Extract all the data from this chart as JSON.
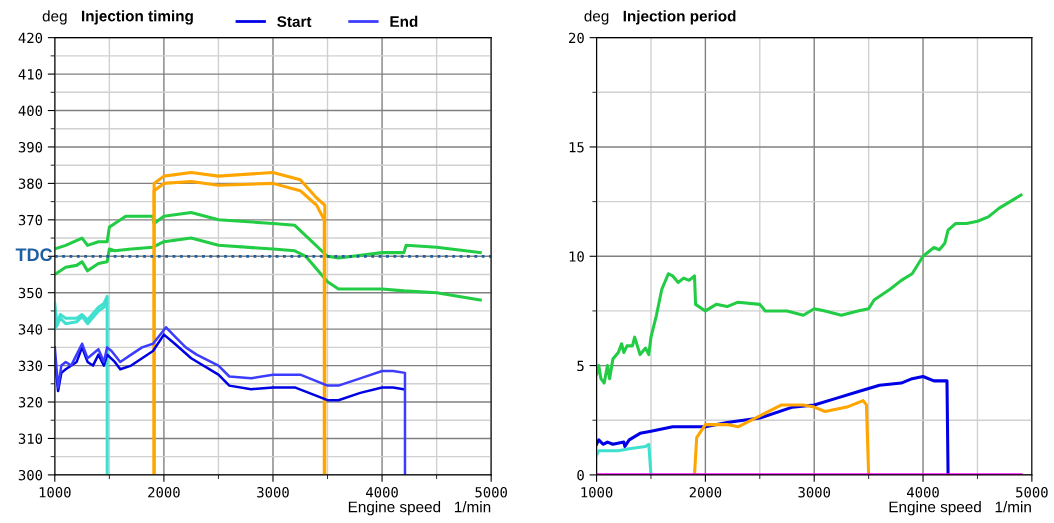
{
  "chart_data": [
    {
      "type": "line",
      "title": "Injection timing",
      "ylabel": "deg",
      "xlabel": "Engine speed   1/min",
      "legend": "top",
      "grid": true,
      "xlim": [
        1000,
        5000
      ],
      "xticks": [
        1000,
        2000,
        3000,
        4000,
        5000
      ],
      "ylim": [
        300,
        420
      ],
      "yticks": [
        300,
        310,
        320,
        330,
        340,
        350,
        {
          "value": 360,
          "label": null
        },
        370,
        380,
        390,
        400,
        410,
        420
      ],
      "ref_lines": [
        {
          "axis": "y",
          "value": 360,
          "label": "TDC",
          "color": "#1f5fa0",
          "line_style": "dotted"
        }
      ],
      "series": [
        {
          "color": "#22cc44",
          "x": [
            1000,
            1100,
            1250,
            1300,
            1400,
            1480,
            1500,
            1550,
            1650,
            1900,
            1910,
            2000,
            2250,
            2500,
            3000,
            3200,
            3500,
            3600,
            4000,
            4200,
            4220,
            4500,
            4900
          ],
          "values": [
            362,
            363,
            365,
            363,
            364,
            364,
            368,
            369,
            371,
            371,
            369,
            371,
            372,
            370,
            369,
            368.5,
            360,
            359.5,
            361,
            361,
            363,
            362.5,
            361
          ]
        },
        {
          "color": "#22cc44",
          "x": [
            1000,
            1100,
            1200,
            1250,
            1300,
            1400,
            1480,
            1500,
            1550,
            1700,
            1900,
            2000,
            2250,
            2500,
            3000,
            3200,
            3300,
            3500,
            3600,
            4000,
            4200,
            4500,
            4900
          ],
          "values": [
            355,
            357,
            357.5,
            358.5,
            356,
            358,
            358.5,
            362,
            361.5,
            362,
            362.5,
            364,
            365,
            363,
            362,
            361.5,
            360,
            353,
            351,
            351,
            350.5,
            350,
            348
          ]
        },
        {
          "color": "#ffa500",
          "x": [
            1910,
            1910,
            2000,
            2250,
            2500,
            3000,
            3250,
            3400,
            3475,
            3475
          ],
          "values": [
            300,
            380,
            382,
            383,
            382,
            383,
            381,
            376,
            374,
            300
          ]
        },
        {
          "color": "#ffa500",
          "x": [
            1910,
            1910,
            2000,
            2250,
            2500,
            3000,
            3250,
            3400,
            3470,
            3470
          ],
          "values": [
            300,
            378,
            380,
            380.5,
            379.5,
            380,
            378,
            374,
            370,
            300
          ]
        },
        {
          "color": "#40e0d0",
          "x": [
            1000,
            1020,
            1050,
            1100,
            1200,
            1250,
            1300,
            1400,
            1450,
            1480,
            1480
          ],
          "values": [
            347,
            341,
            344,
            343,
            343,
            344,
            342.5,
            346,
            347,
            349,
            300
          ]
        },
        {
          "color": "#40e0d0",
          "x": [
            1000,
            1050,
            1100,
            1200,
            1250,
            1300,
            1400,
            1450,
            1475
          ],
          "values": [
            340,
            343,
            341.5,
            342,
            343.5,
            341.5,
            345,
            346,
            347
          ]
        },
        {
          "name": "Start",
          "color": "#0000e6",
          "x": [
            1000,
            1030,
            1060,
            1100,
            1200,
            1250,
            1300,
            1350,
            1400,
            1450,
            1480,
            1550,
            1600,
            1700,
            1900,
            2000,
            2100,
            2250,
            2500,
            2600,
            2800,
            3000,
            3200,
            3500,
            3600,
            3800,
            4000,
            4100,
            4200
          ],
          "values": [
            332,
            323,
            328,
            329,
            331,
            335,
            331,
            330,
            333,
            330,
            333,
            331,
            329,
            330,
            334,
            338.5,
            336,
            332,
            327.5,
            324.5,
            323.5,
            324,
            324,
            320.5,
            320.5,
            322.5,
            324,
            324,
            323.5
          ]
        },
        {
          "name": "End",
          "color": "#3c3cff",
          "x": [
            1000,
            1030,
            1060,
            1100,
            1150,
            1200,
            1250,
            1300,
            1400,
            1450,
            1480,
            1520,
            1600,
            1700,
            1800,
            1900,
            2020,
            2100,
            2200,
            2300,
            2500,
            2600,
            2800,
            3000,
            3250,
            3500,
            3600,
            3800,
            4000,
            4100,
            4210,
            4210
          ],
          "values": [
            335,
            324,
            330,
            331,
            330,
            333,
            336,
            332,
            334.5,
            331,
            335,
            334,
            331,
            333,
            335,
            336,
            340.5,
            338,
            335,
            333,
            330,
            327,
            326.5,
            327.5,
            327.5,
            324.5,
            324.5,
            326.5,
            328.5,
            328.5,
            328,
            300
          ]
        }
      ]
    },
    {
      "type": "line",
      "title": "Injection period",
      "ylabel": "deg",
      "xlabel": "Engine speed   1/min",
      "grid": true,
      "xlim": [
        1000,
        5000
      ],
      "xticks": [
        1000,
        2000,
        3000,
        4000,
        5000
      ],
      "ylim": [
        0,
        20
      ],
      "yticks": [
        0,
        5,
        10,
        15,
        20
      ],
      "series": [
        {
          "color": "#22cc44",
          "x": [
            1000,
            1020,
            1040,
            1070,
            1100,
            1120,
            1150,
            1200,
            1230,
            1250,
            1280,
            1330,
            1350,
            1400,
            1450,
            1480,
            1500,
            1550,
            1600,
            1660,
            1700,
            1750,
            1800,
            1850,
            1900,
            1910,
            2000,
            2100,
            2200,
            2300,
            2500,
            2550,
            2750,
            2900,
            3000,
            3100,
            3250,
            3400,
            3500,
            3550,
            3700,
            3800,
            3900,
            3950,
            4000,
            4100,
            4150,
            4200,
            4230,
            4300,
            4400,
            4500,
            4600,
            4700,
            4800,
            4900
          ],
          "values": [
            4.6,
            5.0,
            4.4,
            4.2,
            5.0,
            4.4,
            5.3,
            5.6,
            6.0,
            5.6,
            5.9,
            5.9,
            6.3,
            5.5,
            5.8,
            5.5,
            6.3,
            7.3,
            8.5,
            9.2,
            9.1,
            8.8,
            9.0,
            8.9,
            9.1,
            7.8,
            7.5,
            7.8,
            7.7,
            7.9,
            7.8,
            7.5,
            7.5,
            7.3,
            7.6,
            7.5,
            7.3,
            7.5,
            7.6,
            8.0,
            8.5,
            8.9,
            9.2,
            9.6,
            10.0,
            10.4,
            10.3,
            10.6,
            11.2,
            11.5,
            11.5,
            11.6,
            11.8,
            12.2,
            12.5,
            12.8
          ]
        },
        {
          "color": "#0000e6",
          "x": [
            1000,
            1020,
            1060,
            1100,
            1150,
            1250,
            1260,
            1300,
            1400,
            1500,
            1600,
            1700,
            2000,
            2200,
            2500,
            2800,
            3000,
            3200,
            3400,
            3600,
            3800,
            3900,
            4000,
            4100,
            4220,
            4230
          ],
          "values": [
            1.4,
            1.6,
            1.4,
            1.5,
            1.4,
            1.5,
            1.3,
            1.6,
            1.9,
            2.0,
            2.1,
            2.2,
            2.2,
            2.4,
            2.6,
            3.1,
            3.2,
            3.5,
            3.8,
            4.1,
            4.2,
            4.4,
            4.5,
            4.3,
            4.3,
            0
          ]
        },
        {
          "color": "#ffa500",
          "x": [
            1900,
            1920,
            2000,
            2200,
            2300,
            2500,
            2700,
            2900,
            3000,
            3100,
            3300,
            3450,
            3480,
            3500
          ],
          "values": [
            0,
            1.7,
            2.3,
            2.3,
            2.2,
            2.7,
            3.2,
            3.2,
            3.1,
            2.9,
            3.1,
            3.4,
            3.2,
            0
          ]
        },
        {
          "color": "#40e0d0",
          "x": [
            1000,
            1020,
            1200,
            1300,
            1450,
            1480,
            1500
          ],
          "values": [
            0.9,
            1.1,
            1.1,
            1.2,
            1.3,
            1.4,
            0
          ]
        },
        {
          "color": "#ff00ff",
          "x": [
            1000,
            4900
          ],
          "values": [
            0,
            0
          ]
        }
      ]
    }
  ]
}
